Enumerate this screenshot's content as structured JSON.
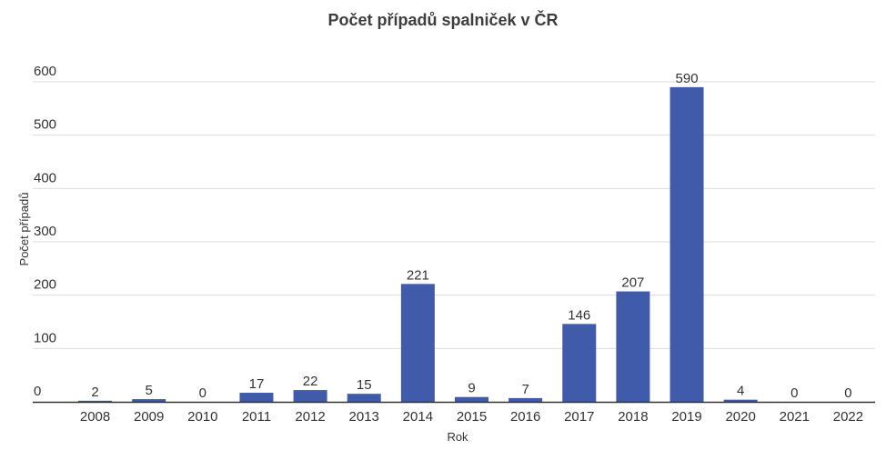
{
  "chart_data": {
    "type": "bar",
    "title": "Počet případů spalniček v ČR",
    "xlabel": "Rok",
    "ylabel": "Počet případů",
    "categories": [
      "2008",
      "2009",
      "2010",
      "2011",
      "2012",
      "2013",
      "2014",
      "2015",
      "2016",
      "2017",
      "2018",
      "2019",
      "2020",
      "2021",
      "2022"
    ],
    "values": [
      2,
      5,
      0,
      17,
      22,
      15,
      221,
      9,
      7,
      146,
      207,
      590,
      4,
      0,
      0
    ],
    "data_labels": [
      "2",
      "5",
      "0",
      "17",
      "22",
      "15",
      "221",
      "9",
      "7",
      "146",
      "207",
      "590",
      "4",
      "0",
      "0"
    ],
    "ylim": [
      0,
      600
    ],
    "yticks": [
      0,
      100,
      200,
      300,
      400,
      500,
      600
    ],
    "ytick_labels": [
      "0",
      "100",
      "200",
      "300",
      "400",
      "500",
      "600"
    ],
    "grid": true,
    "legend": "none",
    "colors": {
      "bar": "#3f5ba9",
      "grid": "#dddddd",
      "axis": "#333333",
      "text": "#333333"
    }
  }
}
